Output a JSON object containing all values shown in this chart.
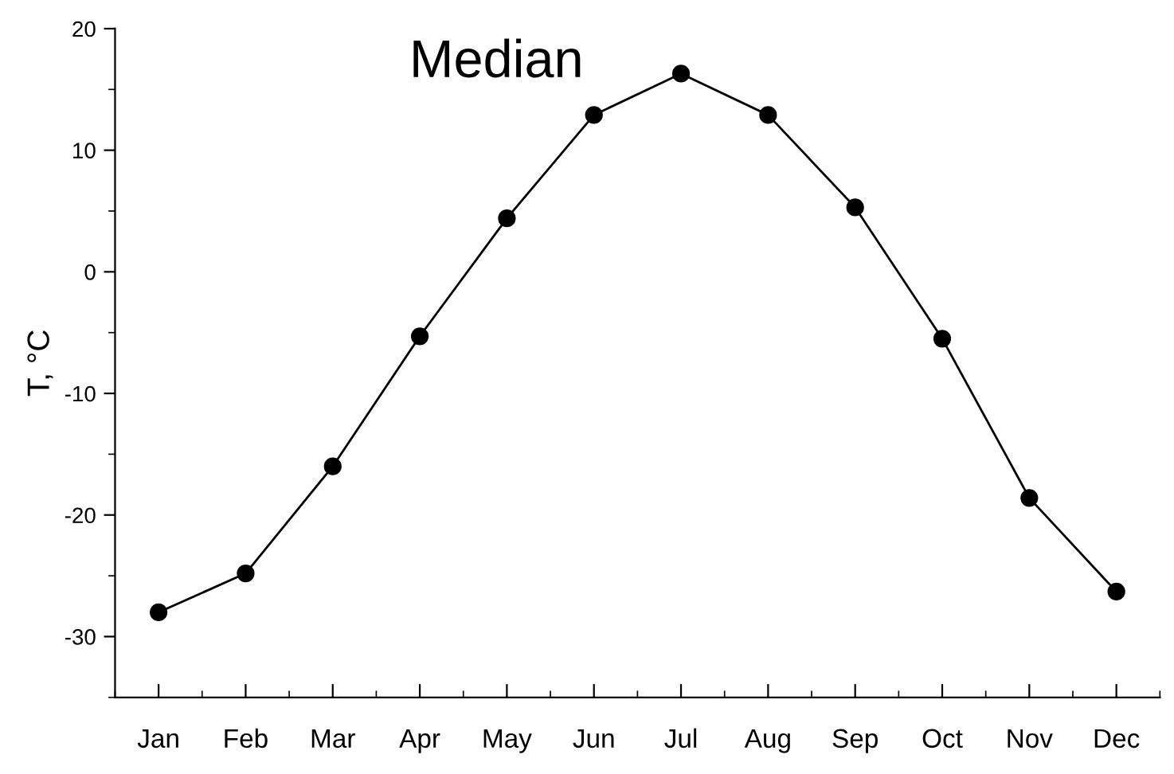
{
  "chart_data": {
    "type": "line",
    "title": "Median",
    "ylabel": "T, °C",
    "categories": [
      "Jan",
      "Feb",
      "Mar",
      "Apr",
      "May",
      "Jun",
      "Jul",
      "Aug",
      "Sep",
      "Oct",
      "Nov",
      "Dec"
    ],
    "series": [
      {
        "color": "#000000",
        "values": [
          -28.0,
          -24.8,
          -16.0,
          -5.3,
          4.4,
          12.9,
          16.3,
          12.9,
          5.3,
          -5.5,
          -18.6,
          -26.3
        ]
      }
    ],
    "ylim": [
      -35,
      20
    ],
    "yticks": [
      {
        "value": -35,
        "label": null
      },
      -30,
      {
        "value": -25,
        "label": null
      },
      -20,
      {
        "value": -15,
        "label": null
      },
      -10,
      {
        "value": -5,
        "label": null
      },
      0,
      {
        "value": 5,
        "label": null
      },
      10,
      {
        "value": 15,
        "label": null
      },
      20
    ],
    "marker": "circle",
    "line_style": "solid",
    "grid": false,
    "legend": false
  }
}
